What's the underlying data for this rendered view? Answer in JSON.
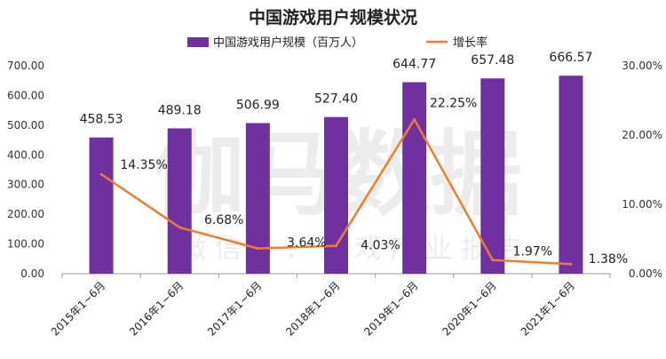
{
  "watermark": {
    "main": "伽马数据",
    "sub": "微 信 号 ： 游 戏 产 业 报 告"
  },
  "chart_data": {
    "type": "bar",
    "title": "中国游戏用户规模状况",
    "categories": [
      "2015年1~6月",
      "2016年1~6月",
      "2017年1~6月",
      "2018年1~6月",
      "2019年1~6月",
      "2020年1~6月",
      "2021年1~6月"
    ],
    "series": [
      {
        "name": "中国游戏用户规模（百万人）",
        "type": "bar",
        "axis": "left",
        "color": "#7030A0",
        "values": [
          458.53,
          489.18,
          506.99,
          527.4,
          644.77,
          657.48,
          666.57
        ],
        "labels": [
          "458.53",
          "489.18",
          "506.99",
          "527.40",
          "644.77",
          "657.48",
          "666.57"
        ]
      },
      {
        "name": "增长率",
        "type": "line",
        "axis": "right",
        "color": "#ED7D31",
        "values": [
          14.35,
          6.68,
          3.64,
          4.03,
          22.25,
          1.97,
          1.38
        ],
        "labels": [
          "14.35%",
          "6.68%",
          "3.64%",
          "4.03%",
          "22.25%",
          "1.97%",
          "1.38%"
        ]
      }
    ],
    "y_left": {
      "min": 0,
      "max": 700,
      "step": 100,
      "tick_labels": [
        "0.00",
        "100.00",
        "200.00",
        "300.00",
        "400.00",
        "500.00",
        "600.00",
        "700.00"
      ]
    },
    "y_right": {
      "min": 0,
      "max": 30,
      "step": 10,
      "tick_labels": [
        "0.00%",
        "10.00%",
        "20.00%",
        "30.00%"
      ]
    },
    "legend_position": "top",
    "grid": false
  }
}
